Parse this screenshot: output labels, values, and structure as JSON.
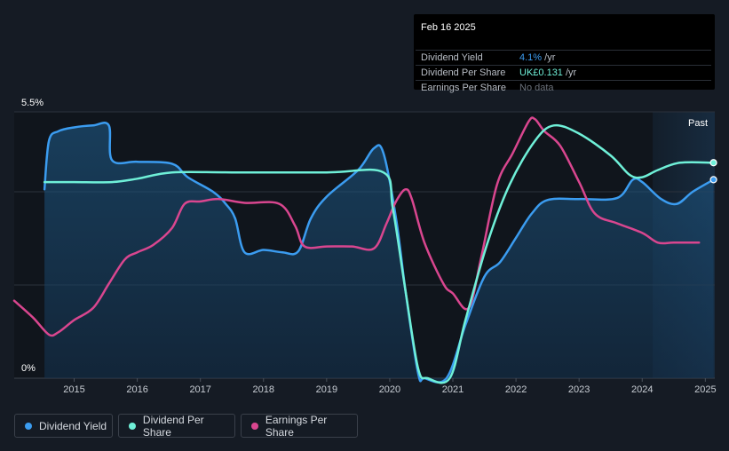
{
  "tooltip": {
    "date": "Feb 16 2025",
    "rows": [
      {
        "label": "Dividend Yield",
        "value": "4.1%",
        "unit": " /yr",
        "color": "#3b9cf0"
      },
      {
        "label": "Dividend Per Share",
        "value": "UK£0.131",
        "unit": " /yr",
        "color": "#6ff0d8"
      },
      {
        "label": "Earnings Per Share",
        "value": "No data",
        "unit": "",
        "color": "#6b717a"
      }
    ]
  },
  "legend": [
    {
      "label": "Dividend Yield",
      "color": "#3b9cf0"
    },
    {
      "label": "Dividend Per Share",
      "color": "#6ff0d8"
    },
    {
      "label": "Earnings Per Share",
      "color": "#d9468f"
    }
  ],
  "colors": {
    "background": "#151b24",
    "dividend_yield": "#3b9cf0",
    "dividend_per_share": "#6ff0d8",
    "earnings_per_share": "#d9468f"
  },
  "chart_data": {
    "type": "line",
    "past_label": "Past",
    "y_tick_labels": [
      "5.5%",
      "0%"
    ],
    "ylim": [
      0,
      5.5
    ],
    "xlim": [
      2014.05,
      2025.15
    ],
    "x_ticks": [
      2015,
      2016,
      2017,
      2018,
      2019,
      2020,
      2021,
      2022,
      2023,
      2024,
      2025
    ],
    "x_tick_labels": [
      "2015",
      "2016",
      "2017",
      "2018",
      "2019",
      "2020",
      "2021",
      "2022",
      "2023",
      "2024",
      "2025"
    ],
    "grid": true,
    "legend_position": "bottom-left",
    "series": [
      {
        "name": "Dividend Yield",
        "unit": "%",
        "filled": true,
        "points": [
          [
            2014.53,
            3.9
          ],
          [
            2014.6,
            4.9
          ],
          [
            2014.75,
            5.1
          ],
          [
            2015,
            5.18
          ],
          [
            2015.3,
            5.22
          ],
          [
            2015.55,
            5.22
          ],
          [
            2015.6,
            4.5
          ],
          [
            2016,
            4.47
          ],
          [
            2016.55,
            4.43
          ],
          [
            2016.8,
            4.15
          ],
          [
            2017.2,
            3.85
          ],
          [
            2017.4,
            3.6
          ],
          [
            2017.55,
            3.3
          ],
          [
            2017.7,
            2.6
          ],
          [
            2018.0,
            2.65
          ],
          [
            2018.3,
            2.6
          ],
          [
            2018.55,
            2.62
          ],
          [
            2018.75,
            3.3
          ],
          [
            2019,
            3.75
          ],
          [
            2019.5,
            4.3
          ],
          [
            2019.75,
            4.75
          ],
          [
            2019.9,
            4.65
          ],
          [
            2020.1,
            3.3
          ],
          [
            2020.25,
            1.8
          ],
          [
            2020.45,
            0.1
          ],
          [
            2020.55,
            0.0
          ],
          [
            2020.9,
            0.0
          ],
          [
            2021.2,
            1.1
          ],
          [
            2021.5,
            2.1
          ],
          [
            2021.75,
            2.4
          ],
          [
            2022.0,
            2.9
          ],
          [
            2022.25,
            3.4
          ],
          [
            2022.5,
            3.68
          ],
          [
            2023.0,
            3.7
          ],
          [
            2023.6,
            3.72
          ],
          [
            2023.85,
            4.1
          ],
          [
            2024.0,
            4.05
          ],
          [
            2024.3,
            3.7
          ],
          [
            2024.55,
            3.6
          ],
          [
            2024.8,
            3.85
          ],
          [
            2025.13,
            4.1
          ]
        ]
      },
      {
        "name": "Dividend Per Share",
        "unit": "",
        "filled": false,
        "points": [
          [
            2014.53,
            4.05
          ],
          [
            2015.0,
            4.05
          ],
          [
            2015.6,
            4.05
          ],
          [
            2016.0,
            4.12
          ],
          [
            2016.55,
            4.25
          ],
          [
            2017.5,
            4.25
          ],
          [
            2019.0,
            4.25
          ],
          [
            2019.9,
            4.25
          ],
          [
            2020.05,
            3.5
          ],
          [
            2020.25,
            1.8
          ],
          [
            2020.45,
            0.2
          ],
          [
            2020.6,
            0.0
          ],
          [
            2020.95,
            0.0
          ],
          [
            2021.2,
            1.2
          ],
          [
            2021.55,
            2.8
          ],
          [
            2021.9,
            4.0
          ],
          [
            2022.3,
            4.9
          ],
          [
            2022.6,
            5.22
          ],
          [
            2023.0,
            5.05
          ],
          [
            2023.5,
            4.6
          ],
          [
            2023.8,
            4.2
          ],
          [
            2024.0,
            4.15
          ],
          [
            2024.25,
            4.3
          ],
          [
            2024.6,
            4.45
          ],
          [
            2025.13,
            4.45
          ]
        ]
      },
      {
        "name": "Earnings Per Share",
        "unit": "",
        "filled": false,
        "points": [
          [
            2014.05,
            1.6
          ],
          [
            2014.35,
            1.25
          ],
          [
            2014.6,
            0.9
          ],
          [
            2014.75,
            0.95
          ],
          [
            2015.0,
            1.2
          ],
          [
            2015.3,
            1.45
          ],
          [
            2015.55,
            1.95
          ],
          [
            2015.8,
            2.45
          ],
          [
            2016.0,
            2.6
          ],
          [
            2016.25,
            2.75
          ],
          [
            2016.55,
            3.1
          ],
          [
            2016.75,
            3.6
          ],
          [
            2017.0,
            3.65
          ],
          [
            2017.3,
            3.7
          ],
          [
            2017.7,
            3.62
          ],
          [
            2018.25,
            3.6
          ],
          [
            2018.5,
            3.15
          ],
          [
            2018.65,
            2.72
          ],
          [
            2019.0,
            2.72
          ],
          [
            2019.4,
            2.72
          ],
          [
            2019.75,
            2.68
          ],
          [
            2019.95,
            3.2
          ],
          [
            2020.1,
            3.65
          ],
          [
            2020.25,
            3.9
          ],
          [
            2020.35,
            3.7
          ],
          [
            2020.55,
            2.8
          ],
          [
            2020.85,
            1.95
          ],
          [
            2021.0,
            1.75
          ],
          [
            2021.25,
            1.45
          ],
          [
            2021.45,
            2.5
          ],
          [
            2021.7,
            4.0
          ],
          [
            2021.95,
            4.65
          ],
          [
            2022.2,
            5.3
          ],
          [
            2022.3,
            5.35
          ],
          [
            2022.45,
            5.1
          ],
          [
            2022.7,
            4.8
          ],
          [
            2023.0,
            4.05
          ],
          [
            2023.25,
            3.4
          ],
          [
            2023.6,
            3.2
          ],
          [
            2024.0,
            3.0
          ],
          [
            2024.25,
            2.8
          ],
          [
            2024.5,
            2.8
          ],
          [
            2024.9,
            2.8
          ]
        ]
      }
    ]
  }
}
